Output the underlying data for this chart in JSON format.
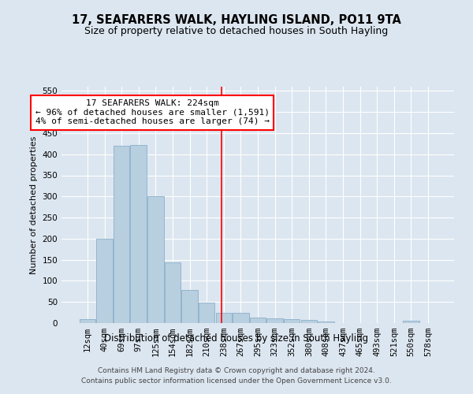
{
  "title": "17, SEAFARERS WALK, HAYLING ISLAND, PO11 9TA",
  "subtitle": "Size of property relative to detached houses in South Hayling",
  "xlabel": "Distribution of detached houses by size in South Hayling",
  "ylabel": "Number of detached properties",
  "bar_labels": [
    "12sqm",
    "40sqm",
    "69sqm",
    "97sqm",
    "125sqm",
    "154sqm",
    "182sqm",
    "210sqm",
    "238sqm",
    "267sqm",
    "295sqm",
    "323sqm",
    "352sqm",
    "380sqm",
    "408sqm",
    "437sqm",
    "465sqm",
    "493sqm",
    "521sqm",
    "550sqm",
    "578sqm"
  ],
  "bar_values": [
    10,
    200,
    420,
    422,
    300,
    143,
    78,
    49,
    24,
    24,
    13,
    11,
    9,
    7,
    4,
    0,
    0,
    0,
    0,
    5,
    0
  ],
  "bar_color": "#b8cfe0",
  "bar_edge_color": "#8aafc8",
  "vline_x": 7.85,
  "vline_color": "red",
  "annotation_title": "17 SEAFARERS WALK: 224sqm",
  "annotation_line1": "← 96% of detached houses are smaller (1,591)",
  "annotation_line2": "4% of semi-detached houses are larger (74) →",
  "annotation_box_color": "#ffffff",
  "annotation_border_color": "red",
  "ylim": [
    0,
    560
  ],
  "yticks": [
    0,
    50,
    100,
    150,
    200,
    250,
    300,
    350,
    400,
    450,
    500,
    550
  ],
  "background_color": "#dce6f0",
  "plot_bg_color": "#dce6f0",
  "footer_line1": "Contains HM Land Registry data © Crown copyright and database right 2024.",
  "footer_line2": "Contains public sector information licensed under the Open Government Licence v3.0.",
  "title_fontsize": 10.5,
  "subtitle_fontsize": 9,
  "xlabel_fontsize": 8.5,
  "ylabel_fontsize": 8,
  "tick_fontsize": 7.5,
  "annotation_fontsize": 8,
  "footer_fontsize": 6.5
}
